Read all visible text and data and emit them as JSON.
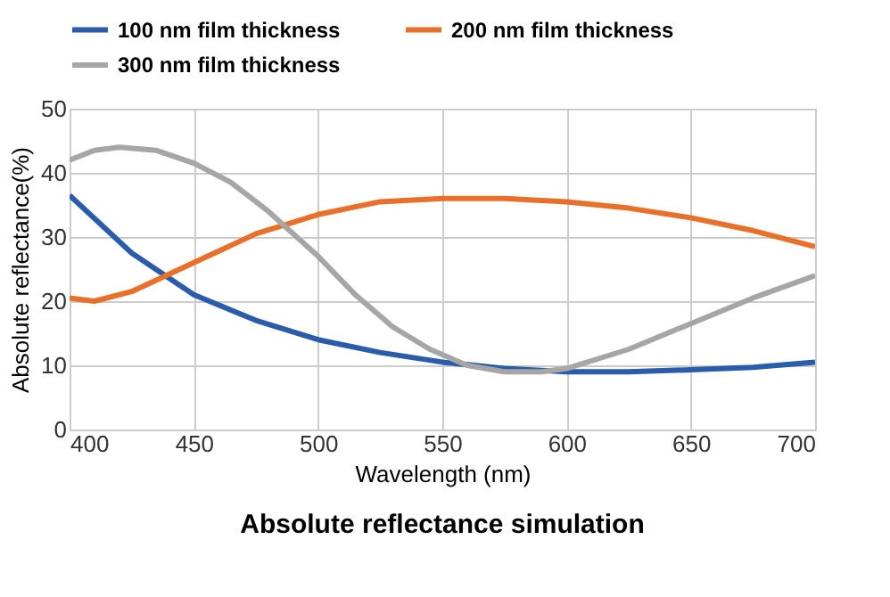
{
  "chart_data": {
    "type": "line",
    "title": "Absolute reflectance simulation",
    "xlabel": "Wavelength (nm)",
    "ylabel": "Absolute reflectance(%)",
    "xlim": [
      400,
      700
    ],
    "xticks": [
      400,
      450,
      500,
      550,
      600,
      650,
      700
    ],
    "ylim": [
      0,
      50
    ],
    "yticks": [
      0,
      10,
      20,
      30,
      40,
      50
    ],
    "grid": true,
    "legend": "top",
    "marker": "none",
    "line_style": "solid",
    "series": [
      {
        "name": "100 nm film thickness",
        "color": "#2a5caa",
        "x": [
          400,
          425,
          450,
          475,
          500,
          525,
          550,
          575,
          600,
          625,
          650,
          675,
          700
        ],
        "values": [
          36.5,
          27.5,
          21,
          17,
          14,
          12,
          10.5,
          9.5,
          9,
          9,
          9.3,
          9.7,
          10.5
        ]
      },
      {
        "name": "200 nm film thickness",
        "color": "#e8702a",
        "x": [
          400,
          410,
          425,
          450,
          475,
          500,
          525,
          550,
          575,
          600,
          625,
          650,
          675,
          700
        ],
        "values": [
          20.5,
          20,
          21.5,
          26,
          30.5,
          33.5,
          35.5,
          36,
          36,
          35.5,
          34.5,
          33,
          31,
          28.5
        ]
      },
      {
        "name": "300 nm film thickness",
        "color": "#a6a6a6",
        "x": [
          400,
          410,
          420,
          435,
          450,
          465,
          480,
          500,
          515,
          530,
          545,
          560,
          575,
          590,
          600,
          625,
          650,
          675,
          700
        ],
        "values": [
          42,
          43.5,
          44,
          43.5,
          41.5,
          38.5,
          34,
          27,
          21,
          16,
          12.5,
          10,
          9,
          9,
          9.5,
          12.5,
          16.5,
          20.5,
          24
        ]
      }
    ]
  }
}
